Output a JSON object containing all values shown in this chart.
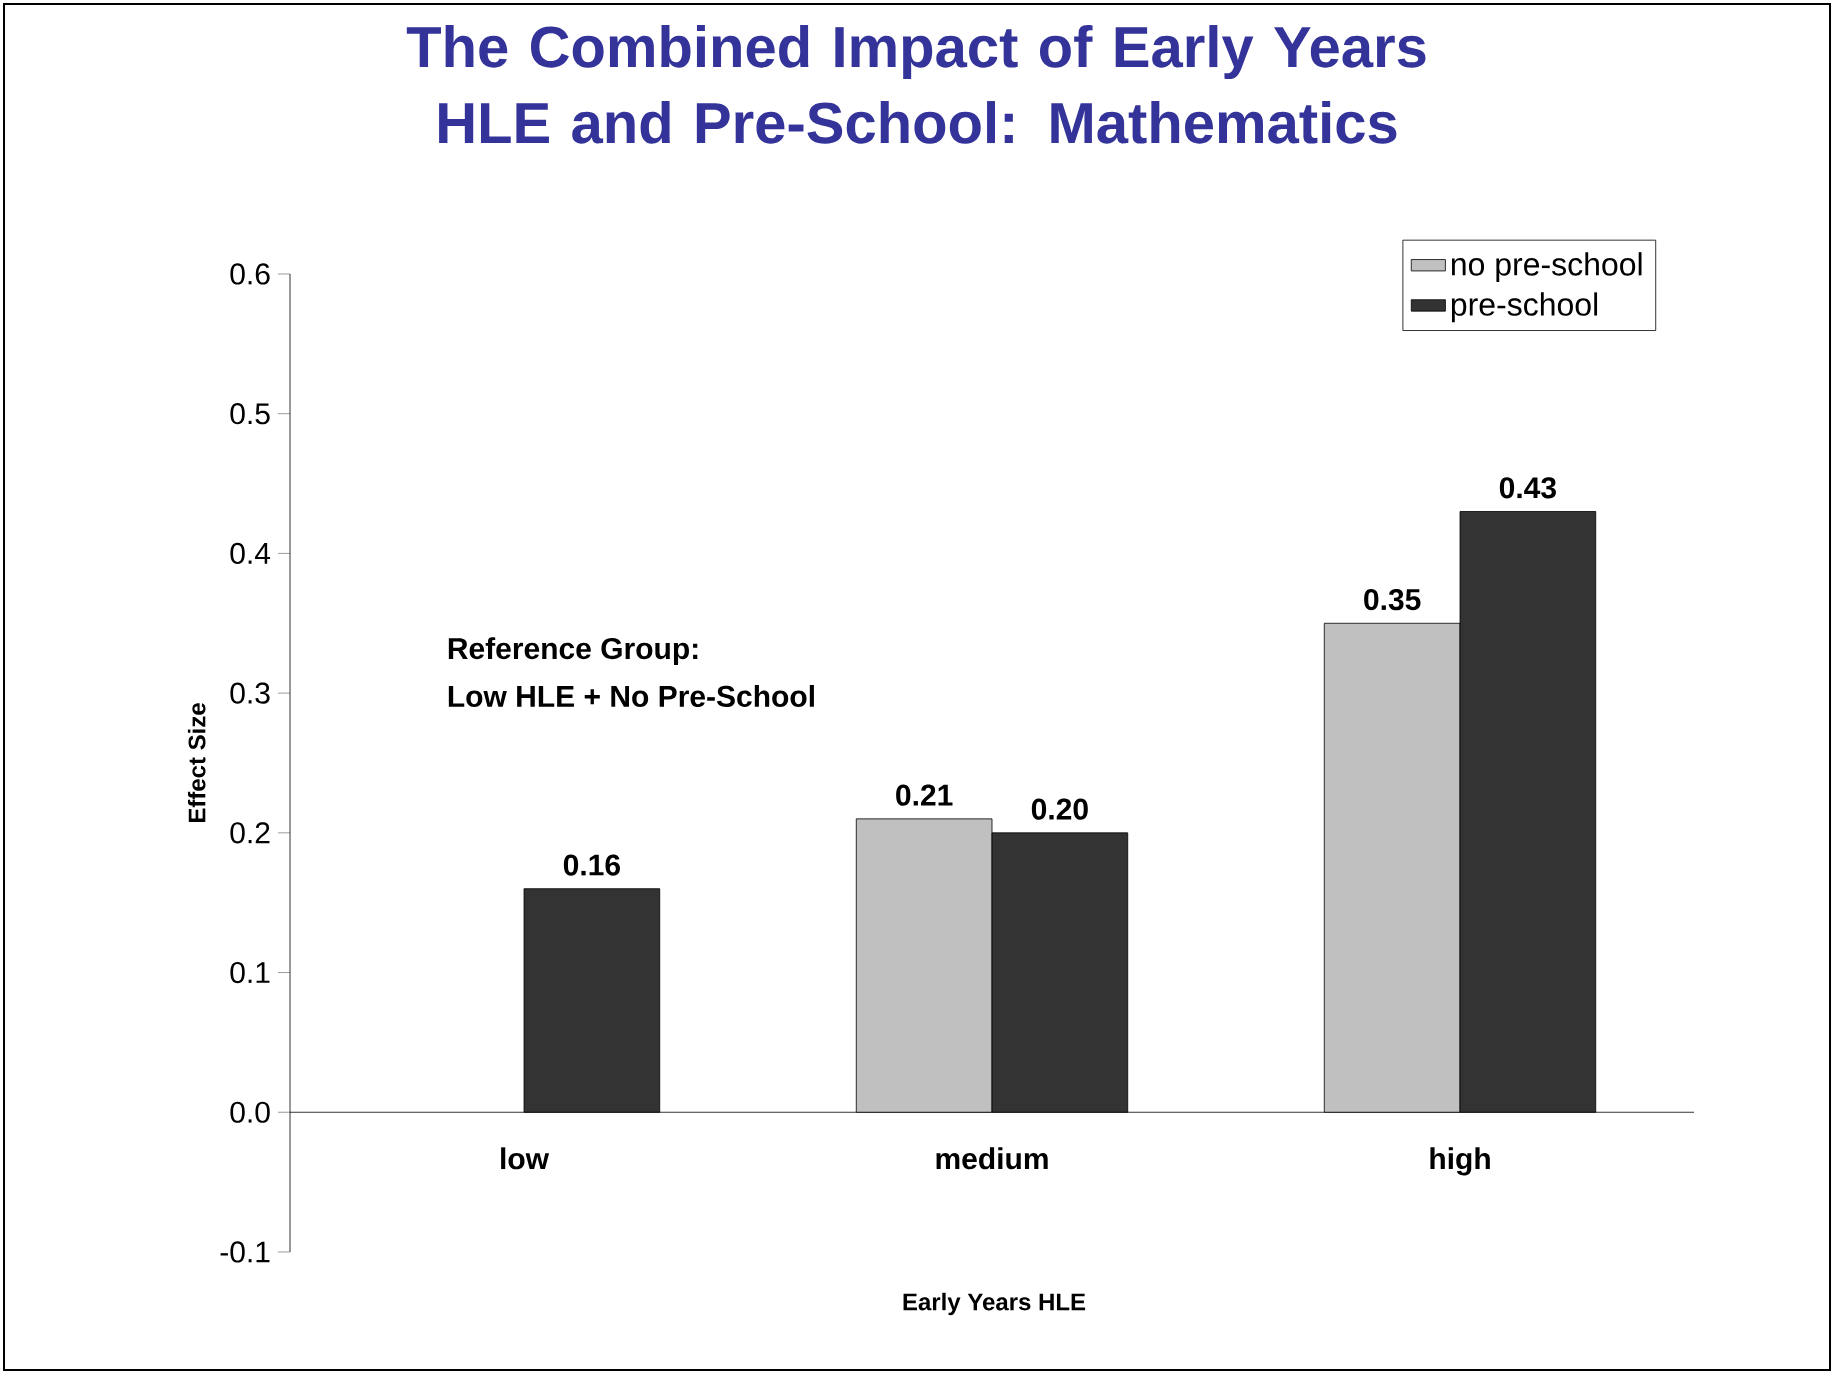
{
  "chart_data": {
    "type": "bar",
    "title": "The Combined Impact of Early Years HLE and Pre-School:  Mathematics",
    "xlabel": "Early Years HLE",
    "ylabel": "Effect Size",
    "categories": [
      "low",
      "medium",
      "high"
    ],
    "series": [
      {
        "name": "no pre-school",
        "color": "#c0c0c0",
        "values": [
          null,
          0.21,
          0.35
        ],
        "value_labels": [
          null,
          "0.21",
          "0.35"
        ]
      },
      {
        "name": "pre-school",
        "color": "#333333",
        "values": [
          0.16,
          0.2,
          0.43
        ],
        "value_labels": [
          "0.16",
          "0.20",
          "0.43"
        ]
      }
    ],
    "ylim": [
      -0.1,
      0.6
    ],
    "yticks": [
      {
        "value": -0.1,
        "label": "-0.1"
      },
      {
        "value": 0,
        "label": "0.0"
      },
      0.1,
      0.2,
      0.3,
      0.4,
      0.5,
      0.6
    ],
    "legend": "top right",
    "annotations": [
      "Reference Group:",
      "Low HLE + No Pre-School"
    ]
  }
}
